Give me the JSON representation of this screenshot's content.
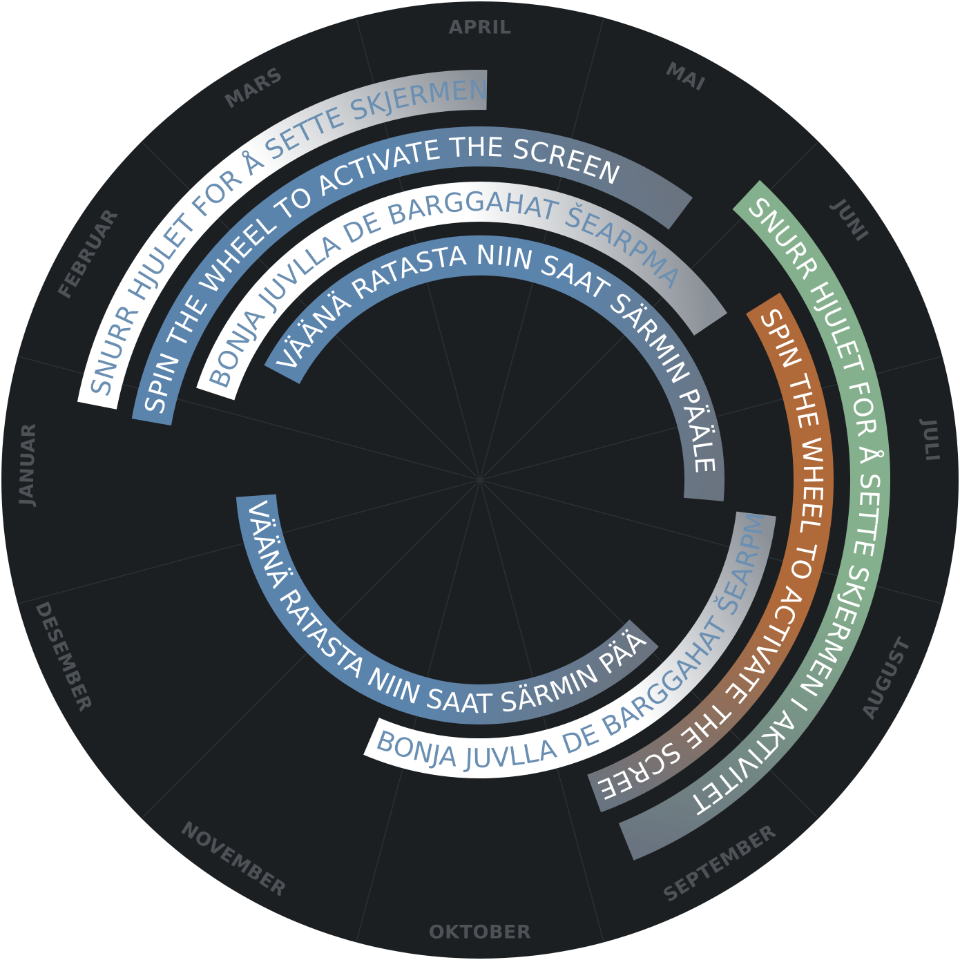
{
  "months": [
    "JANUAR",
    "FEBRUAR",
    "MARS",
    "APRIL",
    "MAI",
    "JUNI",
    "JULI",
    "AUGUST",
    "SEPTEMBER",
    "OKTOBER",
    "NOVEMBER",
    "DESEMBER"
  ],
  "bands": [
    {
      "id": "nor-1",
      "text": "SNURR HJULET FOR Å SETTE SKJERMEN I AKTIVITET",
      "style": "white-grey",
      "text_color": "#6a8fb2"
    },
    {
      "id": "eng-1",
      "text": "SPIN THE WHEEL TO ACTIVATE THE SCREEN",
      "style": "blue-grey",
      "text_color": "#ffffff"
    },
    {
      "id": "sami-1",
      "text": "BONJA JUVLLA DE BARGGAHAT ŠEARPMA",
      "style": "white-grey",
      "text_color": "#6a8fb2"
    },
    {
      "id": "fin-1",
      "text": "VÄÄNÄ RATASTA NIIN SAAT SÄRMIN PÄÄLE",
      "style": "blue-grey",
      "text_color": "#ffffff"
    },
    {
      "id": "nor-2",
      "text": "SNURR HJULET FOR Å SETTE SKJERMEN I AKTIVITET",
      "style": "green-grey",
      "text_color": "#ffffff"
    },
    {
      "id": "eng-2",
      "text": "SPIN THE WHEEL TO ACTIVATE THE SCREEN",
      "style": "orange-grey",
      "text_color": "#ffffff"
    },
    {
      "id": "sami-2",
      "text": "BONJA JUVLLA DE BARGGAHAT ŠEARPMA",
      "style": "white-grey",
      "text_color": "#6a8fb2"
    },
    {
      "id": "fin-2",
      "text": "VÄÄNÄ RATASTA NIIN SAAT SÄRMIN PÄÄLE",
      "style": "blue-grey",
      "text_color": "#ffffff"
    }
  ],
  "colors": {
    "background": "#1c1f22",
    "month_label": "#4d5257",
    "divider": "#2c3135",
    "white": "#ffffff",
    "blue": "#5b84ad",
    "green": "#85b08d",
    "orange": "#b06a3a",
    "slate": "#6a7480",
    "grey": "#8a9097"
  }
}
